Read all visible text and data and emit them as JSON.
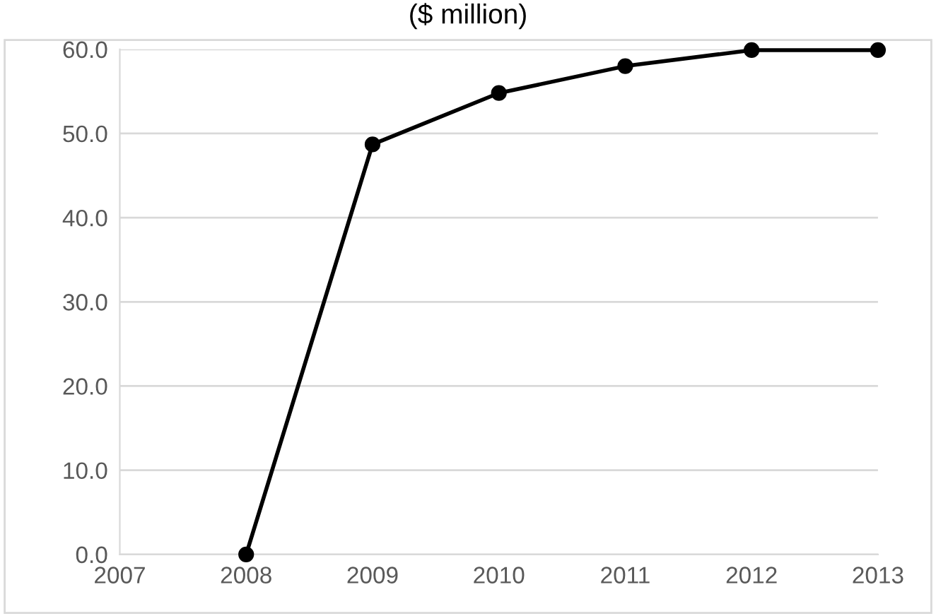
{
  "chart_data": {
    "type": "line",
    "title": "($ million)",
    "x": [
      2008,
      2009,
      2010,
      2011,
      2012,
      2013
    ],
    "series": [
      {
        "color": "#000000",
        "values": [
          0.0,
          48.7,
          54.8,
          58.0,
          59.9,
          59.9
        ]
      }
    ],
    "xlim": [
      2007,
      2013
    ],
    "xticks": [
      2007,
      2008,
      2009,
      2010,
      2011,
      2012,
      2013
    ],
    "ylim": [
      0,
      60
    ],
    "yticks": [
      {
        "value": 0,
        "label": "0.0"
      },
      {
        "value": 10,
        "label": "10.0"
      },
      {
        "value": 20,
        "label": "20.0"
      },
      {
        "value": 30,
        "label": "30.0"
      },
      {
        "value": 40,
        "label": "40.0"
      },
      {
        "value": 50,
        "label": "50.0"
      },
      {
        "value": 60,
        "label": "60.0"
      }
    ],
    "grid": "y",
    "marker": "circle",
    "line_style": "solid"
  }
}
